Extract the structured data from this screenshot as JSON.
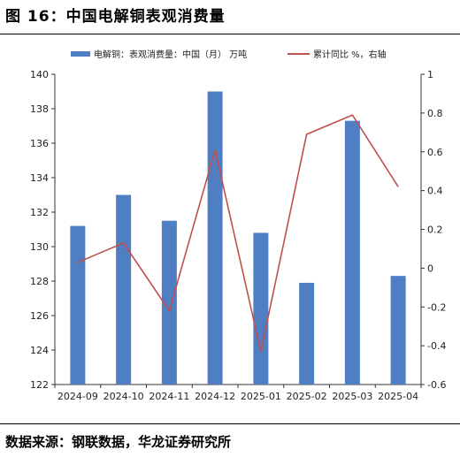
{
  "title": "图 16：中国电解铜表观消费量",
  "source": "数据来源：钢联数据，华龙证券研究所",
  "colors": {
    "bar": "#4f7fc2",
    "line": "#c0504d"
  },
  "chart_data": {
    "type": "bar+line",
    "categories": [
      "2024-09",
      "2024-10",
      "2024-11",
      "2024-12",
      "2025-01",
      "2025-02",
      "2025-03",
      "2025-04"
    ],
    "series": [
      {
        "name": "电解铜：表观消费量：中国（月） 万吨",
        "type": "bar",
        "axis": "left",
        "values": [
          131.2,
          133.0,
          131.5,
          139.0,
          130.8,
          127.9,
          137.3,
          128.3
        ]
      },
      {
        "name": "累计同比 %，右轴",
        "type": "line",
        "axis": "right",
        "values": [
          0.03,
          0.13,
          -0.22,
          0.61,
          -0.43,
          0.69,
          0.79,
          0.42
        ]
      }
    ],
    "ylim_left": [
      122,
      140
    ],
    "yticks_left": [
      "122",
      "124",
      "126",
      "128",
      "130",
      "132",
      "134",
      "136",
      "138",
      "140"
    ],
    "ylim_right": [
      -0.6,
      1
    ],
    "yticks_right": [
      "-0.6",
      "-0.4",
      "-0.2",
      "0",
      "0.2",
      "0.4",
      "0.6",
      "0.8",
      "1"
    ],
    "legend_position": "top",
    "grid": false
  }
}
